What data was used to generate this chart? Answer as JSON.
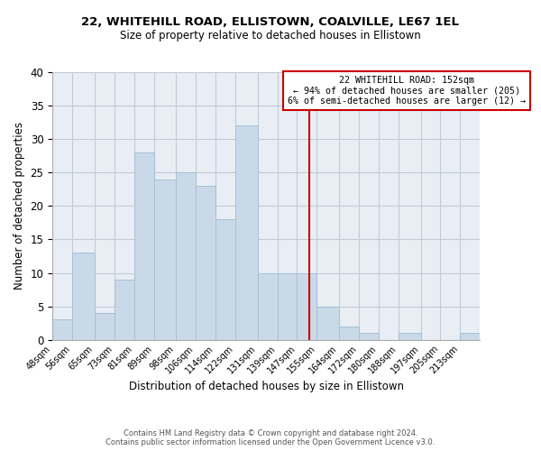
{
  "title_line1": "22, WHITEHILL ROAD, ELLISTOWN, COALVILLE, LE67 1EL",
  "title_line2": "Size of property relative to detached houses in Ellistown",
  "xlabel": "Distribution of detached houses by size in Ellistown",
  "ylabel": "Number of detached properties",
  "bar_labels": [
    "48sqm",
    "56sqm",
    "65sqm",
    "73sqm",
    "81sqm",
    "89sqm",
    "98sqm",
    "106sqm",
    "114sqm",
    "122sqm",
    "131sqm",
    "139sqm",
    "147sqm",
    "155sqm",
    "164sqm",
    "172sqm",
    "180sqm",
    "188sqm",
    "197sqm",
    "205sqm",
    "213sqm"
  ],
  "bar_values": [
    3,
    13,
    4,
    9,
    28,
    24,
    25,
    23,
    18,
    32,
    10,
    10,
    10,
    5,
    2,
    1,
    0,
    1,
    0,
    0,
    1
  ],
  "bar_color": "#c9d9e8",
  "bar_edge_color": "#a8c0d4",
  "vline_x": 152,
  "vline_color": "#cc0000",
  "annotation_title": "22 WHITEHILL ROAD: 152sqm",
  "annotation_line1": "← 94% of detached houses are smaller (205)",
  "annotation_line2": "6% of semi-detached houses are larger (12) →",
  "annotation_box_color": "#ffffff",
  "annotation_box_edge_color": "#cc0000",
  "ylim": [
    0,
    40
  ],
  "yticks": [
    0,
    5,
    10,
    15,
    20,
    25,
    30,
    35,
    40
  ],
  "footer_line1": "Contains HM Land Registry data © Crown copyright and database right 2024.",
  "footer_line2": "Contains public sector information licensed under the Open Government Licence v3.0.",
  "bin_edges": [
    48,
    56,
    65,
    73,
    81,
    89,
    98,
    106,
    114,
    122,
    131,
    139,
    147,
    155,
    164,
    172,
    180,
    188,
    197,
    205,
    213,
    221
  ],
  "bg_color": "#e8eef4"
}
